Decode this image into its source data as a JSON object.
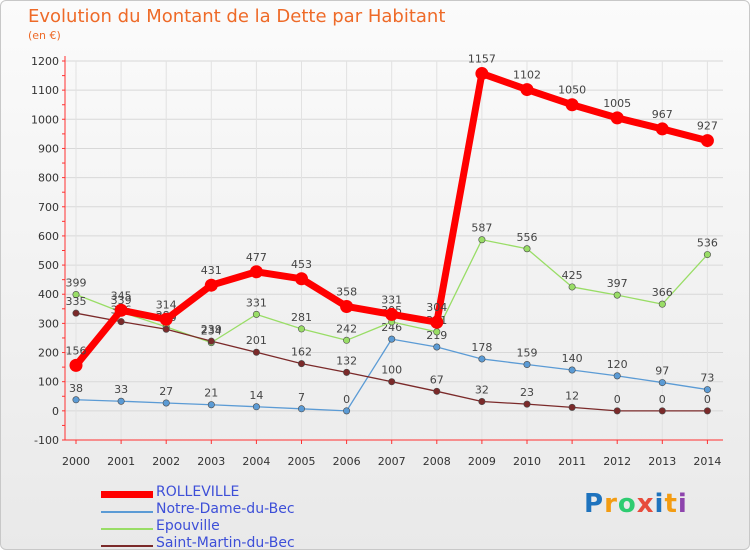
{
  "chart_data": {
    "type": "line",
    "title": "Evolution du Montant de la Dette par Habitant",
    "subtitle": "(en €)",
    "x": [
      "2000",
      "2001",
      "2002",
      "2003",
      "2004",
      "2005",
      "2006",
      "2007",
      "2008",
      "2009",
      "2010",
      "2011",
      "2012",
      "2013",
      "2014"
    ],
    "ylim": [
      -100,
      1200
    ],
    "yticks": [
      -100,
      0,
      100,
      200,
      300,
      400,
      500,
      600,
      700,
      800,
      900,
      1000,
      1100,
      1200
    ],
    "grid": true,
    "legend_position": "bottom-left",
    "series": [
      {
        "name": "ROLLEVILLE",
        "color": "#ff0000",
        "values": [
          156,
          345,
          314,
          431,
          477,
          453,
          358,
          331,
          304,
          1157,
          1102,
          1050,
          1005,
          967,
          927
        ]
      },
      {
        "name": "Notre-Dame-du-Bec",
        "color": "#5b9bd5",
        "values": [
          38,
          33,
          27,
          21,
          14,
          7,
          0,
          246,
          219,
          178,
          159,
          140,
          120,
          97,
          73
        ]
      },
      {
        "name": "Epouville",
        "color": "#99dd66",
        "values": [
          399,
          339,
          288,
          234,
          331,
          281,
          242,
          305,
          271,
          587,
          556,
          425,
          397,
          366,
          536
        ]
      },
      {
        "name": "Saint-Martin-du-Bec",
        "color": "#7b2a2a",
        "values": [
          335,
          306,
          280,
          239,
          201,
          162,
          132,
          100,
          67,
          32,
          23,
          12,
          0,
          0,
          0
        ]
      }
    ]
  },
  "logo": {
    "letters": [
      "P",
      "r",
      "o",
      "x",
      "i",
      "t",
      "i"
    ],
    "colors": [
      "#1e73be",
      "#f39c12",
      "#2ecc71",
      "#e74c3c",
      "#1e73be",
      "#f39c12",
      "#8e44ad"
    ]
  }
}
